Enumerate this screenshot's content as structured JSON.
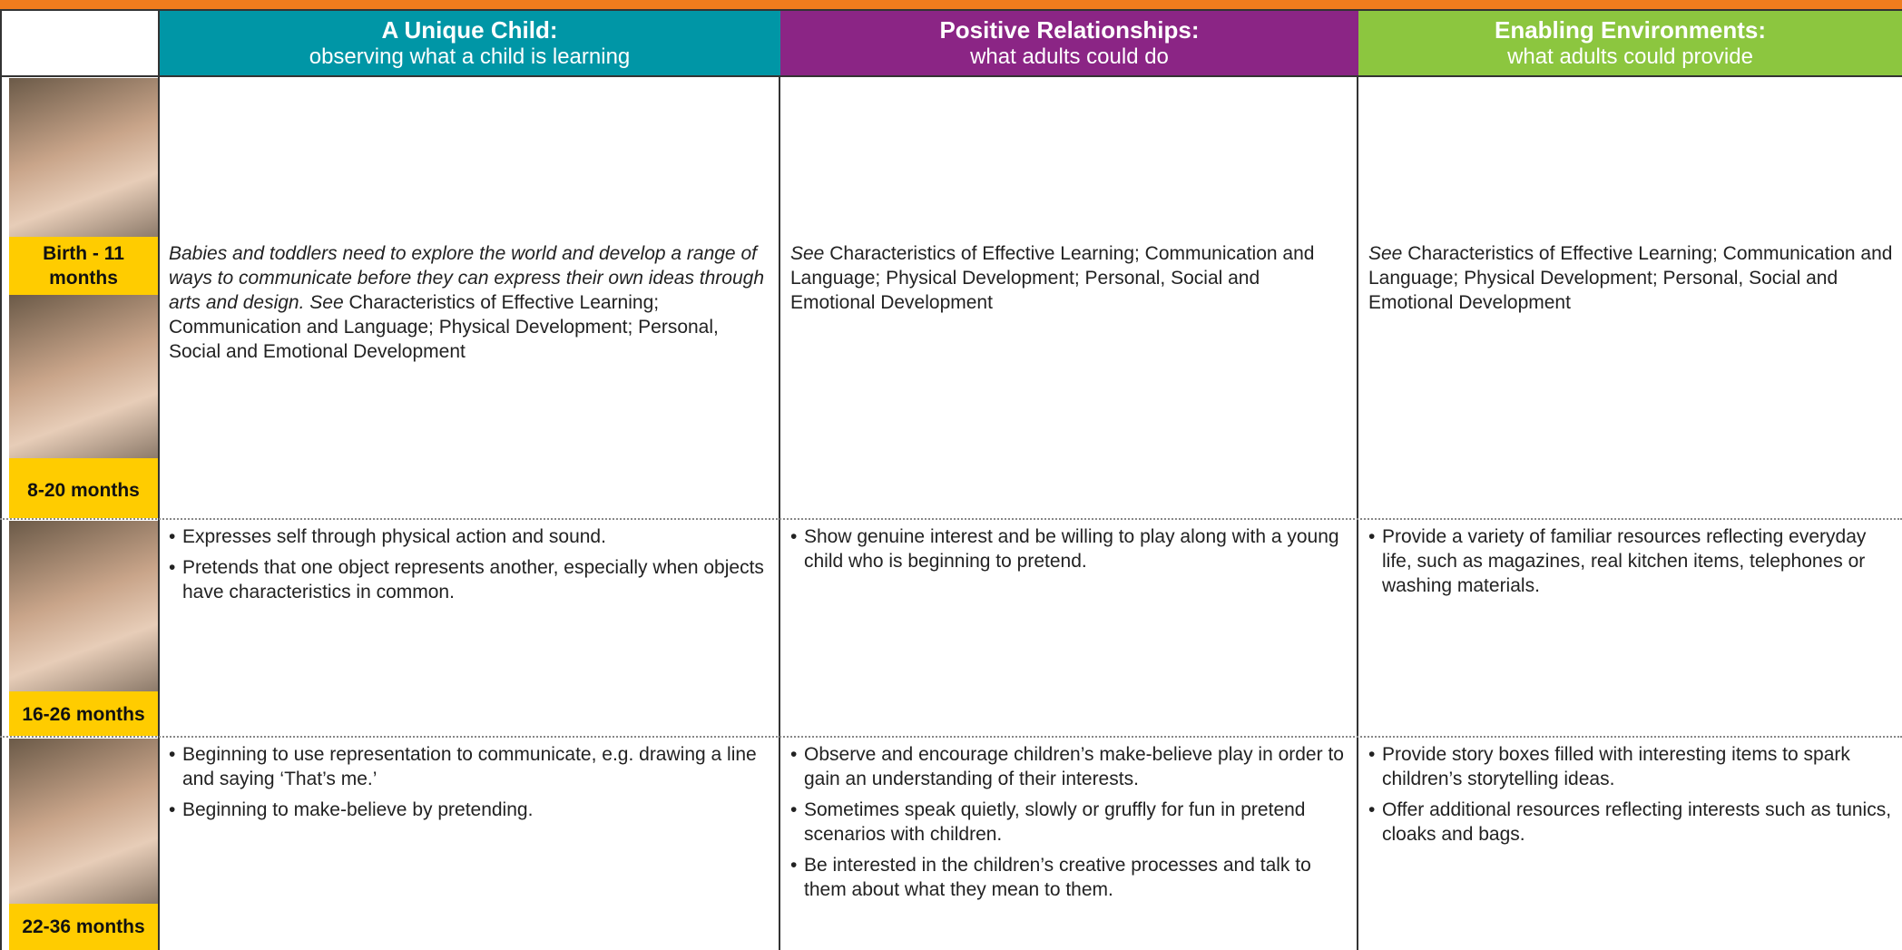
{
  "header": {
    "columns": [
      {
        "title": "A Unique Child:",
        "subtitle": "observing what a child is learning"
      },
      {
        "title": "Positive Relationships:",
        "subtitle": "what adults could do"
      },
      {
        "title": "Enabling Environments:",
        "subtitle": "what adults could provide"
      }
    ]
  },
  "rows": [
    {
      "ages": [
        "Birth - 11 months",
        "8-20 months"
      ],
      "cells": [
        {
          "em": "Babies and toddlers need to explore the world and develop a range of ways to communicate before they can express their own ideas through arts and design. See",
          "text": "Characteristics of Effective Learning; Communication and Language; Physical Development; Personal, Social and Emotional Development"
        },
        {
          "em": "See",
          "text": "Characteristics of Effective Learning; Communication and Language; Physical Development; Personal, Social and Emotional Development"
        },
        {
          "em": "See",
          "text": "Characteristics of Effective Learning; Communication and Language; Physical Development; Personal, Social and Emotional Development"
        }
      ]
    },
    {
      "ages": [
        "16-26 months"
      ],
      "cells": [
        {
          "bullets": [
            "Expresses self through physical action and sound.",
            "Pretends that one object represents another, especially when objects have characteristics in common."
          ]
        },
        {
          "bullets": [
            "Show genuine interest and be willing to play along with a young child who is beginning to pretend."
          ]
        },
        {
          "bullets": [
            "Provide a variety of familiar resources reflecting everyday life, such as magazines, real kitchen items, telephones or washing materials."
          ]
        }
      ]
    },
    {
      "ages": [
        "22-36 months"
      ],
      "cells": [
        {
          "bullets": [
            "Beginning to use representation to communicate, e.g. drawing a line and saying ‘That’s me.’",
            "Beginning to make-believe by pretending."
          ]
        },
        {
          "bullets": [
            "Observe and encourage children’s make-believe play in order to gain an understanding of their interests.",
            "Sometimes speak quietly, slowly or gruffly for fun in pretend scenarios with children.",
            "Be interested in the children’s creative processes and talk to them about what they mean to them."
          ]
        },
        {
          "bullets": [
            "Provide story boxes filled with interesting items to spark children’s storytelling ideas.",
            "Offer additional resources reflecting interests such as tunics, cloaks and bags."
          ]
        }
      ]
    }
  ]
}
